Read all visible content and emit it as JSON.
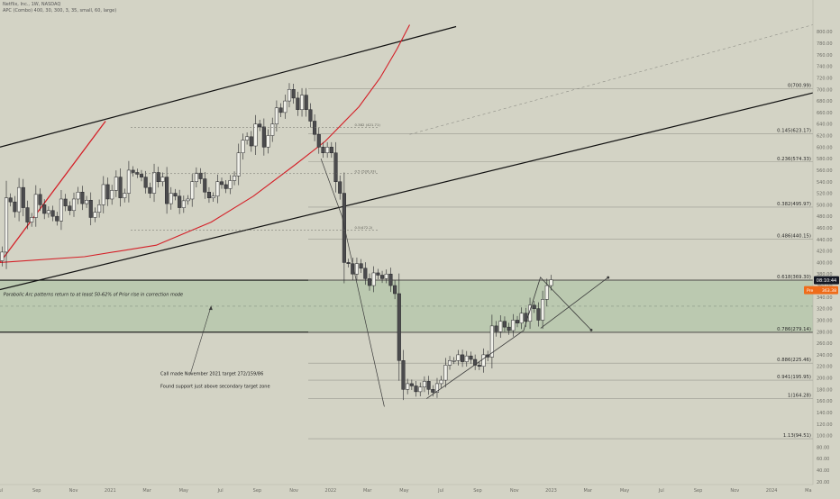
{
  "header": {
    "symbol_line": "Netflix, Inc., 1W, NASDAQ",
    "indicator_line": "APC (Combo) 400, 30, 300, 3, 35, small, 60, large)"
  },
  "colors": {
    "background": "#d3d3c5",
    "zone_fill": "#b3c6a8",
    "candle_up": "#f1f1ea",
    "candle_down": "#4b4b4d",
    "parabola": "#d41f27",
    "channel": "#111111",
    "price_tag": "#131722",
    "pre_tag": "#ef6c1a",
    "fib_line": "#9a9a90"
  },
  "chart_data": {
    "type": "candlestick",
    "title": "Netflix, Inc., 1W, NASDAQ",
    "ylim": [
      15,
      855
    ],
    "y_axis_ticks": [
      "20.00",
      "40.00",
      "60.00",
      "80.00",
      "100.00",
      "120.00",
      "140.00",
      "160.00",
      "180.00",
      "200.00",
      "220.00",
      "240.00",
      "260.00",
      "280.00",
      "300.00",
      "320.00",
      "340.00",
      "360.00",
      "380.00",
      "400.00",
      "420.00",
      "440.00",
      "460.00",
      "480.00",
      "500.00",
      "520.00",
      "540.00",
      "560.00",
      "580.00",
      "600.00",
      "620.00",
      "640.00",
      "660.00",
      "680.00",
      "700.00",
      "720.00",
      "740.00",
      "760.00",
      "780.00",
      "800.00"
    ],
    "x_axis_ticks": [
      {
        "label": "Jul",
        "week": 0
      },
      {
        "label": "Sep",
        "week": 8.7
      },
      {
        "label": "Nov",
        "week": 17.4
      },
      {
        "label": "2021",
        "week": 26.1
      },
      {
        "label": "Mar",
        "week": 34.8
      },
      {
        "label": "May",
        "week": 43.5
      },
      {
        "label": "Jul",
        "week": 52.2
      },
      {
        "label": "Sep",
        "week": 60.9
      },
      {
        "label": "Nov",
        "week": 69.6
      },
      {
        "label": "2022",
        "week": 78.3
      },
      {
        "label": "Mar",
        "week": 87
      },
      {
        "label": "May",
        "week": 95.7
      },
      {
        "label": "Jul",
        "week": 104.4
      },
      {
        "label": "Sep",
        "week": 113.1
      },
      {
        "label": "Nov",
        "week": 121.8
      },
      {
        "label": "2023",
        "week": 130.5
      },
      {
        "label": "Mar",
        "week": 139.2
      },
      {
        "label": "May",
        "week": 147.9
      },
      {
        "label": "Jul",
        "week": 156.6
      },
      {
        "label": "Sep",
        "week": 165.3
      },
      {
        "label": "Nov",
        "week": 174
      },
      {
        "label": "2024",
        "week": 182.7
      },
      {
        "label": "Ma",
        "week": 191.4
      }
    ],
    "x_range_weeks": [
      0,
      192.5
    ],
    "candle_closes": [
      418,
      512,
      505,
      488,
      530,
      495,
      470,
      478,
      518,
      500,
      485,
      490,
      480,
      472,
      510,
      498,
      490,
      510,
      522,
      502,
      508,
      478,
      487,
      500,
      535,
      510,
      525,
      548,
      512,
      520,
      560,
      556,
      553,
      548,
      530,
      520,
      556,
      540,
      548,
      502,
      520,
      515,
      495,
      507,
      510,
      540,
      555,
      545,
      522,
      512,
      515,
      540,
      535,
      528,
      542,
      550,
      590,
      612,
      618,
      602,
      640,
      635,
      600,
      620,
      640,
      668,
      660,
      680,
      700,
      685,
      665,
      690,
      665,
      645,
      622,
      600,
      590,
      600,
      590,
      540,
      520,
      400,
      398,
      380,
      398,
      390,
      372,
      360,
      382,
      378,
      372,
      380,
      360,
      346,
      230,
      180,
      190,
      186,
      176,
      184,
      194,
      180,
      175,
      190,
      196,
      222,
      230,
      230,
      240,
      228,
      238,
      232,
      222,
      220,
      240,
      236,
      290,
      280,
      298,
      288,
      282,
      300,
      295,
      312,
      298,
      326,
      320,
      300,
      336,
      360,
      370
    ],
    "fib_levels": [
      {
        "ratio": "0",
        "value": 700.99,
        "label": "0(700.99)"
      },
      {
        "ratio": "0.145",
        "value": 623.17,
        "label": "0.145(623.17)"
      },
      {
        "ratio": "0.236",
        "value": 574.33,
        "label": "0.236(574.33)"
      },
      {
        "ratio": "0.382",
        "value": 495.97,
        "label": "0.382(495.97)"
      },
      {
        "ratio": "0.486",
        "value": 440.15,
        "label": "0.486(440.15)"
      },
      {
        "ratio": "0.618",
        "value": 369.3,
        "label": "0.618(369.30)"
      },
      {
        "ratio": "0.786",
        "value": 279.14,
        "label": "0.786(279.14)"
      },
      {
        "ratio": "0.886",
        "value": 225.46,
        "label": "0.886(225.46)"
      },
      {
        "ratio": "0.941",
        "value": 195.95,
        "label": "0.941(195.95)"
      },
      {
        "ratio": "1",
        "value": 164.28,
        "label": "1(164.28)"
      },
      {
        "ratio": "1.13",
        "value": 94.51,
        "label": "1.13(94.51)"
      }
    ],
    "target_zone": {
      "top": 369.3,
      "bottom": 279.14
    },
    "channel_lower": [
      {
        "week": 0,
        "price": 353
      },
      {
        "week": 192.5,
        "price": 694
      }
    ],
    "channel_upper": [
      {
        "week": 0,
        "price": 600
      },
      {
        "week": 108,
        "price": 809
      }
    ],
    "dashed_midline": [
      {
        "week": 97,
        "price": 622
      },
      {
        "week": 192.5,
        "price": 812
      }
    ],
    "parabolic_arc": [
      {
        "week": 0,
        "price": 400
      },
      {
        "week": 20,
        "price": 410
      },
      {
        "week": 37,
        "price": 430
      },
      {
        "week": 50,
        "price": 470
      },
      {
        "week": 60,
        "price": 515
      },
      {
        "week": 70,
        "price": 570
      },
      {
        "week": 77,
        "price": 610
      },
      {
        "week": 85,
        "price": 670
      },
      {
        "week": 90,
        "price": 720
      },
      {
        "week": 94,
        "price": 770
      },
      {
        "week": 97,
        "price": 812
      }
    ],
    "early_red_line": [
      {
        "week": 0,
        "price": 400
      },
      {
        "week": 25,
        "price": 645
      }
    ],
    "decline_path": [
      {
        "week": 76,
        "price": 580
      },
      {
        "week": 81,
        "price": 480
      },
      {
        "week": 91,
        "price": 150
      }
    ],
    "rising_trendline": [
      {
        "week": 101,
        "price": 164
      },
      {
        "week": 124,
        "price": 282
      },
      {
        "week": 128,
        "price": 375
      }
    ],
    "projection_up": [
      {
        "week": 128,
        "price": 286
      },
      {
        "week": 144,
        "price": 374
      }
    ],
    "projection_down": [
      {
        "week": 128,
        "price": 374
      },
      {
        "week": 140,
        "price": 283
      }
    ],
    "callout_arrow": [
      {
        "week": 45,
        "price": 205
      },
      {
        "week": 50,
        "price": 325
      }
    ],
    "small_fib_tags": [
      {
        "label": "0.382 (421.71)",
        "week": 81,
        "price": 634
      },
      {
        "label": "0.5 (526.33)",
        "week": 81,
        "price": 554
      },
      {
        "label": "0.5(472.2)",
        "week": 81,
        "price": 456
      }
    ],
    "annotations": [
      {
        "text": "Parabolic Arc patterns return to at least 50-62% of Prior rise in correction mode",
        "week": 0.8,
        "price": 342,
        "italic": true
      },
      {
        "text": "Call made November 2021 target 272/159/86",
        "week": 38,
        "price": 205,
        "italic": false
      },
      {
        "text": "Found support just above secondary target zone",
        "week": 38,
        "price": 183,
        "italic": false
      }
    ],
    "last_price_tag": {
      "label": "08:10:44",
      "price": 369.3
    },
    "pre_tag": {
      "label_prefix": "Pre",
      "label_value": "363.38",
      "price": 352
    }
  }
}
